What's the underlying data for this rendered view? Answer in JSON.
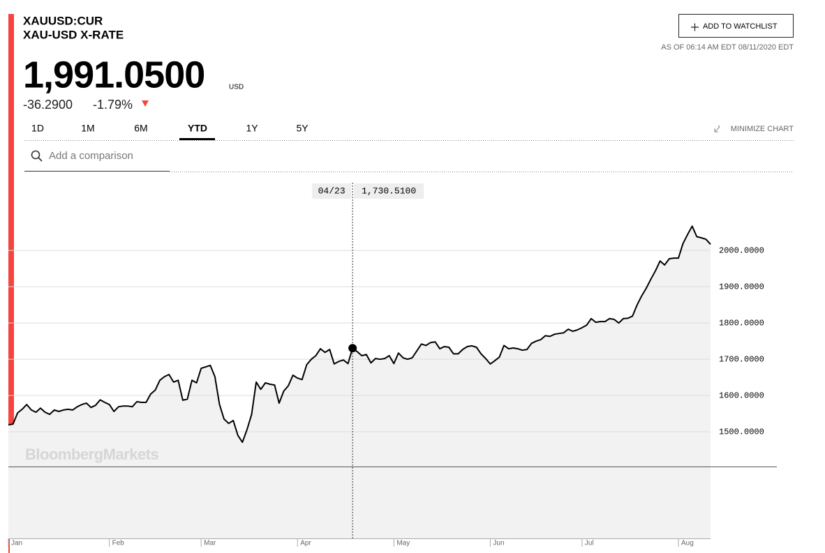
{
  "header": {
    "ticker": "XAUUSD:CUR",
    "name": "XAU-USD X-RATE",
    "price": "1,991.0500",
    "currency": "USD",
    "change": "-36.2900",
    "change_pct": "-1.79%",
    "watchlist": "ADD TO WATCHLIST",
    "as_of": "AS OF 06:14 AM EDT 08/11/2020 EDT"
  },
  "tabs": [
    "1D",
    "1M",
    "6M",
    "YTD",
    "1Y",
    "5Y"
  ],
  "minimize": "MINIMIZE CHART",
  "search_placeholder": "Add a comparison",
  "watermark": "BloombergMarkets",
  "chart_data": {
    "type": "line",
    "color": "#000000",
    "area_color": "#f2f2f2",
    "categories": [
      "Jan",
      null,
      null,
      null,
      null,
      null,
      null,
      null,
      null,
      null,
      null,
      null,
      null,
      null,
      null,
      null,
      null,
      null,
      null,
      null,
      null,
      null,
      "Feb",
      null,
      null,
      null,
      null,
      null,
      null,
      null,
      null,
      null,
      null,
      null,
      null,
      null,
      null,
      null,
      null,
      null,
      null,
      null,
      "Mar",
      null,
      null,
      null,
      null,
      null,
      null,
      null,
      null,
      null,
      null,
      null,
      null,
      null,
      null,
      null,
      null,
      null,
      null,
      null,
      null,
      "Apr",
      null,
      null,
      null,
      null,
      null,
      null,
      null,
      null,
      null,
      null,
      null,
      null,
      null,
      null,
      null,
      null,
      null,
      null,
      null,
      null,
      "May",
      null,
      null,
      null,
      null,
      null,
      null,
      null,
      null,
      null,
      null,
      null,
      null,
      null,
      null,
      null,
      null,
      null,
      null,
      null,
      null,
      "Jun",
      null,
      null,
      null,
      null,
      null,
      null,
      null,
      null,
      null,
      null,
      null,
      null,
      null,
      null,
      null,
      null,
      null,
      null,
      null,
      "Jul",
      null,
      null,
      null,
      null,
      null,
      null,
      null,
      null,
      null,
      null,
      null,
      null,
      null,
      null,
      null,
      null,
      null,
      null,
      null,
      null,
      "Aug",
      null,
      null,
      null,
      null,
      null,
      null,
      null
    ],
    "values": [
      1519,
      1521,
      1552,
      1562,
      1575,
      1560,
      1554,
      1565,
      1554,
      1548,
      1560,
      1556,
      1560,
      1562,
      1560,
      1569,
      1575,
      1579,
      1567,
      1573,
      1588,
      1581,
      1575,
      1556,
      1569,
      1571,
      1571,
      1569,
      1583,
      1581,
      1581,
      1604,
      1615,
      1642,
      1652,
      1658,
      1637,
      1642,
      1587,
      1590,
      1642,
      1635,
      1675,
      1679,
      1683,
      1652,
      1575,
      1535,
      1523,
      1531,
      1490,
      1471,
      1506,
      1548,
      1637,
      1617,
      1635,
      1631,
      1629,
      1579,
      1612,
      1627,
      1656,
      1648,
      1644,
      1685,
      1700,
      1710,
      1729,
      1719,
      1727,
      1687,
      1694,
      1698,
      1688,
      1730.51,
      1721,
      1710,
      1713,
      1690,
      1702,
      1700,
      1702,
      1710,
      1688,
      1717,
      1704,
      1700,
      1704,
      1723,
      1742,
      1738,
      1746,
      1748,
      1729,
      1735,
      1733,
      1715,
      1715,
      1727,
      1735,
      1737,
      1733,
      1715,
      1702,
      1687,
      1696,
      1706,
      1738,
      1729,
      1731,
      1729,
      1725,
      1727,
      1744,
      1750,
      1754,
      1765,
      1763,
      1769,
      1771,
      1773,
      1783,
      1777,
      1781,
      1787,
      1794,
      1812,
      1802,
      1804,
      1804,
      1812,
      1810,
      1800,
      1812,
      1813,
      1819,
      1850,
      1875,
      1896,
      1921,
      1944,
      1971,
      1960,
      1977,
      1979,
      1979,
      2019,
      2044,
      2067,
      2038,
      2035,
      2031,
      2017
    ],
    "ylim": [
      1206,
      2210
    ],
    "yticks": [
      {
        "value": 1500,
        "label": "1500.0000"
      },
      {
        "value": 1600,
        "label": "1600.0000"
      },
      {
        "value": 1700,
        "label": "1700.0000"
      },
      {
        "value": 1800,
        "label": "1800.0000"
      },
      {
        "value": 1900,
        "label": "1900.0000"
      },
      {
        "value": 2000,
        "label": "2000.0000"
      }
    ],
    "grid": true,
    "crosshair": {
      "date": "04/23",
      "value": 1730.51,
      "label": "1,730.5100"
    }
  }
}
